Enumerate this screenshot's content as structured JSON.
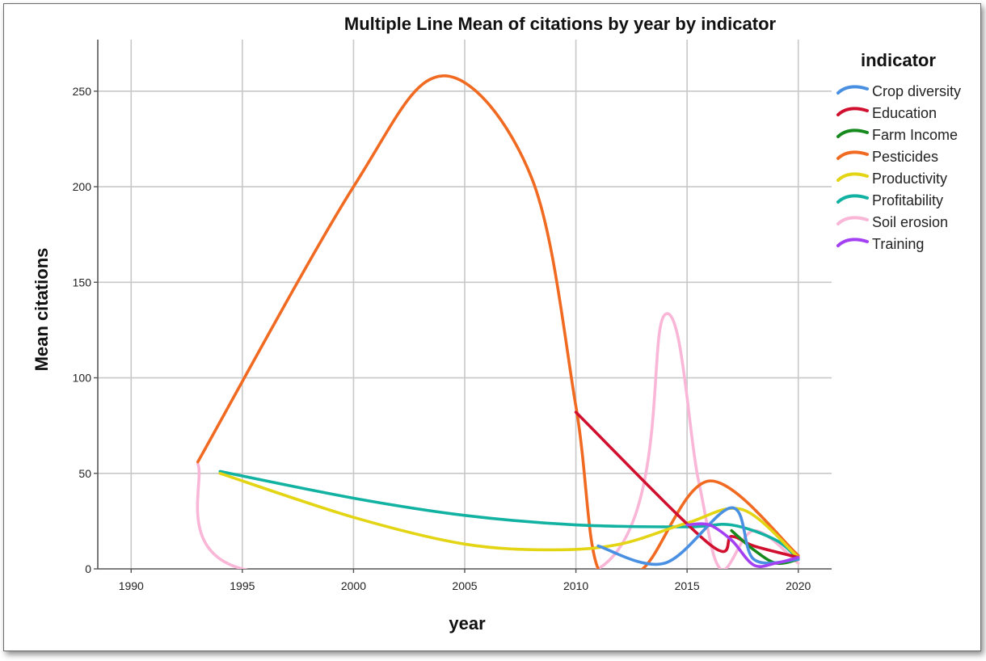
{
  "chart_data": {
    "type": "line",
    "title": "Multiple Line Mean of citations by year by indicator",
    "xlabel": "year",
    "ylabel": "Mean citations",
    "xlim": [
      1988.5,
      2021.5
    ],
    "ylim": [
      0,
      277
    ],
    "x_ticks": [
      1990,
      1995,
      2000,
      2005,
      2010,
      2015,
      2020
    ],
    "y_ticks": [
      0,
      50,
      100,
      150,
      200,
      250
    ],
    "grid": true,
    "legend_title": "indicator",
    "legend_position": "right",
    "series": [
      {
        "name": "Crop diversity",
        "color": "#4a90e2",
        "x": [
          2011,
          2014,
          2017,
          2018,
          2020
        ],
        "y": [
          12,
          3,
          32,
          5,
          5
        ]
      },
      {
        "name": "Education",
        "color": "#d0102e",
        "x": [
          2010,
          2016,
          2017,
          2018,
          2020
        ],
        "y": [
          82,
          13,
          17,
          12,
          6
        ]
      },
      {
        "name": "Farm Income",
        "color": "#178a1e",
        "x": [
          2017,
          2018,
          2019,
          2020
        ],
        "y": [
          20,
          10,
          3,
          5
        ]
      },
      {
        "name": "Pesticides",
        "color": "#f06a22",
        "x": [
          1993,
          2000,
          2004,
          2008,
          2010,
          2011,
          2013,
          2016,
          2020
        ],
        "y": [
          56,
          200,
          258,
          205,
          85,
          0,
          0,
          46,
          7
        ]
      },
      {
        "name": "Productivity",
        "color": "#e3d414",
        "x": [
          1994,
          2000,
          2005,
          2009,
          2012,
          2015,
          2017.5,
          2020
        ],
        "y": [
          50,
          27,
          13,
          10,
          13,
          24,
          31,
          6
        ]
      },
      {
        "name": "Profitability",
        "color": "#12b2a2",
        "x": [
          1994,
          2000,
          2005,
          2010,
          2015,
          2017,
          2019,
          2020
        ],
        "y": [
          51,
          37,
          28,
          23,
          22,
          23,
          15,
          5
        ]
      },
      {
        "name": "Soil erosion",
        "color": "#f9b6d6",
        "x": [
          1993,
          1995,
          2011,
          2014,
          2015.5,
          2016.5,
          2018,
          2020
        ],
        "y": [
          55,
          0,
          0,
          133,
          47,
          0,
          20,
          3
        ]
      },
      {
        "name": "Training",
        "color": "#a340f2",
        "x": [
          2015,
          2016,
          2017,
          2018,
          2019,
          2020
        ],
        "y": [
          23,
          23,
          15,
          2,
          3,
          6
        ]
      }
    ]
  }
}
